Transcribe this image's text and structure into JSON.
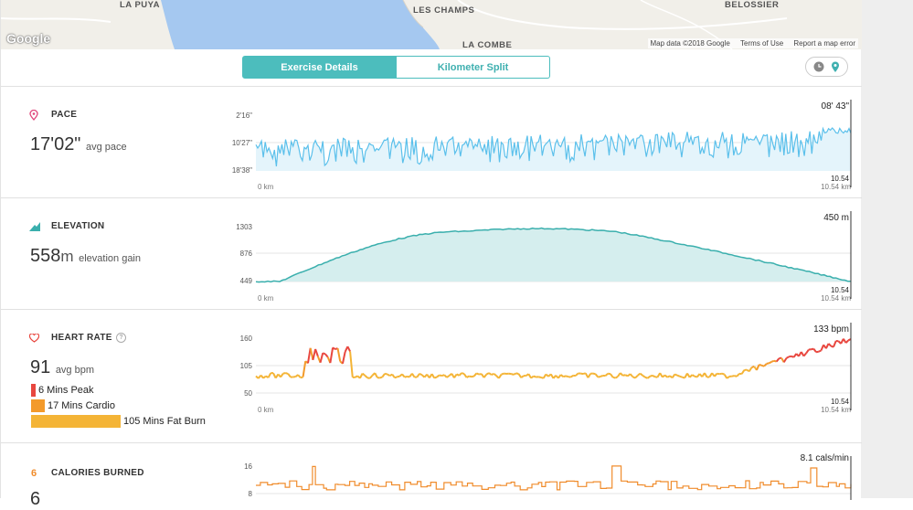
{
  "map": {
    "labels": [
      "LA PUYA",
      "LES CHAMPS",
      "LA COMBE",
      "BELOSSIER"
    ],
    "logo": "Google",
    "footer": [
      "Map data ©2018 Google",
      "Terms of Use",
      "Report a map error"
    ]
  },
  "tabs": [
    {
      "label": "Exercise Details",
      "active": true
    },
    {
      "label": "Kilometer Split",
      "active": false
    }
  ],
  "toggle": {
    "icons": [
      "clock-icon",
      "map-pin-icon"
    ]
  },
  "pace": {
    "title": "PACE",
    "value": "17'02\"",
    "unit_label": "avg pace",
    "y_ticks": [
      "2'16\"",
      "10'27\"",
      "18'38\""
    ],
    "current_value": "08' 43\"",
    "x_start": "0 km",
    "x_end": "10.54 km",
    "marker_label": "10.54"
  },
  "elevation": {
    "title": "ELEVATION",
    "value": "558",
    "unit": "m",
    "unit_label": "elevation gain",
    "y_ticks": [
      "1303",
      "876",
      "449"
    ],
    "current_value": "450 m",
    "x_start": "0 km",
    "x_end": "10.54 km",
    "marker_label": "10.54"
  },
  "heart_rate": {
    "title": "HEART RATE",
    "help": "?",
    "value": "91",
    "unit_label": "avg bpm",
    "y_ticks": [
      "160",
      "105",
      "50"
    ],
    "current_value": "133 bpm",
    "x_start": "0 km",
    "x_end": "10.54 km",
    "marker_label": "10.54",
    "zones": [
      {
        "label": "6 Mins Peak",
        "minutes": 6,
        "color": "#e8473f"
      },
      {
        "label": "17 Mins Cardio",
        "minutes": 17,
        "color": "#f39a2b"
      },
      {
        "label": "105 Mins Fat Burn",
        "minutes": 105,
        "color": "#f4b436"
      }
    ]
  },
  "calories": {
    "title": "CALORIES BURNED",
    "icon_glyph": "6",
    "value": "6",
    "y_ticks": [
      "16",
      "8"
    ],
    "current_value": "8.1 cals/min"
  },
  "colors": {
    "accent": "#4cbdbd",
    "pace_line": "#5bc0eb",
    "elevation_line": "#3aafad",
    "hr_peak": "#e8473f",
    "hr_cardio": "#f39a2b",
    "hr_fatburn": "#f4b436",
    "calories": "#f08c2c"
  }
}
